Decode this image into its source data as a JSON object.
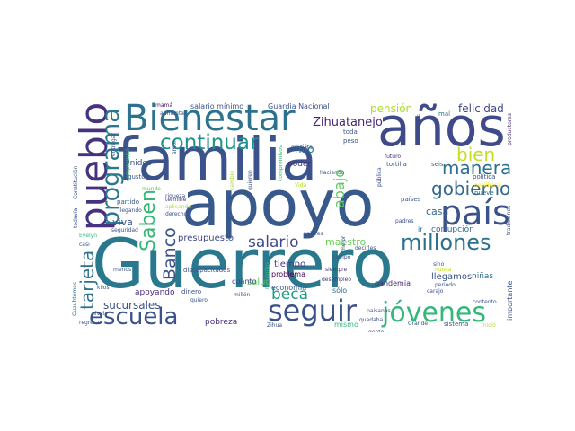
{
  "words": [
    {
      "text": "Guerrero",
      "color": "#2a788e"
    },
    {
      "text": "apoyo",
      "color": "#38598c"
    },
    {
      "text": "familia",
      "color": "#3b528b"
    },
    {
      "text": "años",
      "color": "#3e4a89"
    },
    {
      "text": "pueblo",
      "color": "#46327e"
    },
    {
      "text": "Bienestar",
      "color": "#2c728e"
    },
    {
      "text": "país",
      "color": "#3b528b"
    },
    {
      "text": "continuar",
      "color": "#21918c"
    },
    {
      "text": "programa",
      "color": "#2a788e"
    },
    {
      "text": "jóvenes",
      "color": "#35b779"
    },
    {
      "text": "seguir",
      "color": "#3b528b"
    },
    {
      "text": "escuela",
      "color": "#3b528b"
    },
    {
      "text": "millones",
      "color": "#2c728e"
    },
    {
      "text": "gobierno",
      "color": "#31688e"
    },
    {
      "text": "manera",
      "color": "#2c728e"
    },
    {
      "text": "bien",
      "color": "#c2df23"
    },
    {
      "text": "Saben",
      "color": "#35b779"
    },
    {
      "text": "tarjeta",
      "color": "#2c728e"
    },
    {
      "text": "beca",
      "color": "#1f9e89"
    },
    {
      "text": "salario",
      "color": "#3e4a89"
    },
    {
      "text": "Banco",
      "color": "#3b528b"
    },
    {
      "text": "abajo",
      "color": "#5ec962"
    },
    {
      "text": "Zihuatanejo",
      "color": "#482475"
    },
    {
      "text": "felicidad",
      "color": "#3e4a89"
    },
    {
      "text": "pensión",
      "color": "#addc30"
    },
    {
      "text": "hijo",
      "color": "#2a788e"
    },
    {
      "text": "sucursales",
      "color": "#3b528b"
    },
    {
      "text": "maestro",
      "color": "#6ccd5a"
    },
    {
      "text": "casa",
      "color": "#31688e"
    },
    {
      "text": "viva",
      "color": "#3b528b"
    },
    {
      "text": "presupuesto",
      "color": "#3e4a89"
    },
    {
      "text": "tiempo",
      "color": "#443a83"
    },
    {
      "text": "salud",
      "color": "#5ec962"
    },
    {
      "text": "apoyando",
      "color": "#472d7b"
    },
    {
      "text": "corrupción",
      "color": "#31688e"
    },
    {
      "text": "llegamos",
      "color": "#3b528b"
    },
    {
      "text": "niñas",
      "color": "#31688e"
    },
    {
      "text": "pobreza",
      "color": "#472d7b"
    },
    {
      "text": "poder",
      "color": "#46327e"
    },
    {
      "text": "Unidos",
      "color": "#3b528b"
    },
    {
      "text": "pandemia",
      "color": "#482878"
    },
    {
      "text": "sólo",
      "color": "#2c728e"
    },
    {
      "text": "problema",
      "color": "#440154"
    },
    {
      "text": "economía",
      "color": "#3b528b"
    },
    {
      "text": "importante",
      "color": "#3b528b"
    },
    {
      "text": "cuánto",
      "color": "#3e4a89"
    },
    {
      "text": "mismo",
      "color": "#35b779"
    },
    {
      "text": "salario mínimo",
      "color": "#3b528b"
    },
    {
      "text": "Guardia Nacional",
      "color": "#3b528b"
    },
    {
      "text": "mamá",
      "color": "#471365"
    },
    {
      "text": "mal",
      "color": "#2c728e"
    },
    {
      "text": "costumbres",
      "color": "#3e4a89"
    },
    {
      "text": "productores",
      "color": "#46327e"
    },
    {
      "text": "toda",
      "color": "#3b528b"
    },
    {
      "text": "peso",
      "color": "#3b528b"
    },
    {
      "text": "tortilla",
      "color": "#3b528b"
    },
    {
      "text": "futuro",
      "color": "#482878"
    },
    {
      "text": "seis",
      "color": "#31688e"
    },
    {
      "text": "política",
      "color": "#3b528b"
    },
    {
      "text": "neoliberal",
      "color": "#fde725"
    },
    {
      "text": "nueve",
      "color": "#31688e"
    },
    {
      "text": "tradiciones",
      "color": "#3b528b"
    },
    {
      "text": "países",
      "color": "#3b528b"
    },
    {
      "text": "padres",
      "color": "#3b528b"
    },
    {
      "text": "ir",
      "color": "#31688e"
    },
    {
      "text": "mejor",
      "color": "#3b528b"
    },
    {
      "text": "valores",
      "color": "#3b528b"
    },
    {
      "text": "decirles",
      "color": "#3b528b"
    },
    {
      "text": "sino",
      "color": "#3b528b"
    },
    {
      "text": "siempre",
      "color": "#46327e"
    },
    {
      "text": "periodo",
      "color": "#3b528b"
    },
    {
      "text": "desempleo",
      "color": "#46327e"
    },
    {
      "text": "carajo",
      "color": "#3b528b"
    },
    {
      "text": "contento",
      "color": "#3b528b"
    },
    {
      "text": "gente",
      "color": "#3b528b"
    },
    {
      "text": "quedaba",
      "color": "#3b528b"
    },
    {
      "text": "Grande",
      "color": "#3b528b"
    },
    {
      "text": "sistema",
      "color": "#3b528b"
    },
    {
      "text": "paisanos",
      "color": "#3b528b"
    },
    {
      "text": "inició",
      "color": "#b8de29"
    },
    {
      "text": "Zihua",
      "color": "#3b528b"
    },
    {
      "text": "quieren",
      "color": "#3b528b"
    },
    {
      "text": "migrantes",
      "color": "#35b779"
    },
    {
      "text": "discapacitados",
      "color": "#3b528b"
    },
    {
      "text": "dinero",
      "color": "#3b528b"
    },
    {
      "text": "millón",
      "color": "#3b528b"
    },
    {
      "text": "termine",
      "color": "#46327e"
    },
    {
      "text": "derecho",
      "color": "#3b528b"
    },
    {
      "text": "aplicando",
      "color": "#addc30"
    },
    {
      "text": "riqueza",
      "color": "#3b528b"
    },
    {
      "text": "partido",
      "color": "#3b528b"
    },
    {
      "text": "llegando",
      "color": "#3b528b"
    },
    {
      "text": "mundo",
      "color": "#5ec962"
    },
    {
      "text": "gusto",
      "color": "#3b528b"
    },
    {
      "text": "seguridad",
      "color": "#3b528b"
    },
    {
      "text": "menos",
      "color": "#3b528b"
    },
    {
      "text": "Evelyn",
      "color": "#35b779"
    },
    {
      "text": "casi",
      "color": "#3b528b"
    },
    {
      "text": "kilos",
      "color": "#3b528b"
    },
    {
      "text": "quiero",
      "color": "#3b528b"
    },
    {
      "text": "nivel",
      "color": "#3b528b"
    },
    {
      "text": "regresar",
      "color": "#3b528b"
    },
    {
      "text": "Cuauhtémoc",
      "color": "#31688e"
    },
    {
      "text": "todavía",
      "color": "#3b528b"
    },
    {
      "text": "Constitución",
      "color": "#3b528b"
    },
    {
      "text": "entregar",
      "color": "#3b528b"
    },
    {
      "text": "aumentar",
      "color": "#3b528b"
    },
    {
      "text": "compromiso",
      "color": "#35b779"
    },
    {
      "text": "haciendo",
      "color": "#3b528b"
    },
    {
      "text": "gratuita",
      "color": "#3b528b"
    },
    {
      "text": "compromisos",
      "color": "#35b779"
    },
    {
      "text": "Vida",
      "color": "#b8de29"
    },
    {
      "text": "pública",
      "color": "#3b528b"
    },
    {
      "text": "amor",
      "color": "#3b528b"
    },
    {
      "text": "nunca",
      "color": "#b8de29"
    },
    {
      "text": "campo",
      "color": "#3b528b"
    },
    {
      "text": "cambio",
      "color": "#addc30"
    }
  ]
}
